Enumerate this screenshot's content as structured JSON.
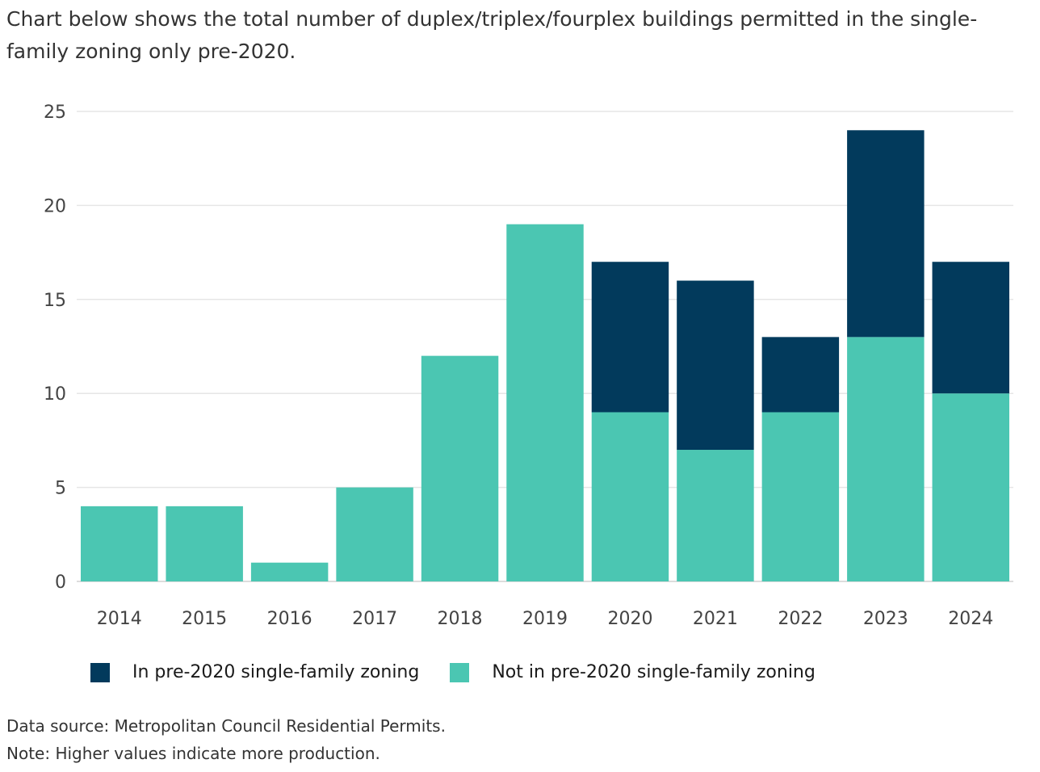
{
  "intro_text": "Chart below shows the total number of duplex/triplex/fourplex buildings permitted in the single-family zoning only pre-2020.",
  "colors": {
    "in_zoning": "#023a5c",
    "not_in_zoning": "#4bc6b2",
    "grid": "#e6e6e6",
    "text": "#333333"
  },
  "chart_data": {
    "type": "bar",
    "stacked": true,
    "title": "",
    "xlabel": "",
    "ylabel": "",
    "ylim": [
      0,
      25
    ],
    "yticks": [
      0,
      5,
      10,
      15,
      20,
      25
    ],
    "categories": [
      "2014",
      "2015",
      "2016",
      "2017",
      "2018",
      "2019",
      "2020",
      "2021",
      "2022",
      "2023",
      "2024"
    ],
    "series": [
      {
        "name": "Not in pre-2020 single-family zoning",
        "color": "#4bc6b2",
        "values": [
          4,
          4,
          1,
          5,
          12,
          19,
          9,
          7,
          9,
          13,
          10
        ]
      },
      {
        "name": "In pre-2020 single-family zoning",
        "color": "#023a5c",
        "values": [
          0,
          0,
          0,
          0,
          0,
          0,
          8,
          9,
          4,
          11,
          7
        ]
      }
    ],
    "legend_position": "bottom-left",
    "grid": true
  },
  "legend": {
    "items": [
      {
        "label": "In pre-2020 single-family zoning"
      },
      {
        "label": "Not in pre-2020 single-family zoning"
      }
    ]
  },
  "footer": {
    "source": "Data source: Metropolitan Council Residential Permits.",
    "note": "Note: Higher values indicate more production."
  }
}
